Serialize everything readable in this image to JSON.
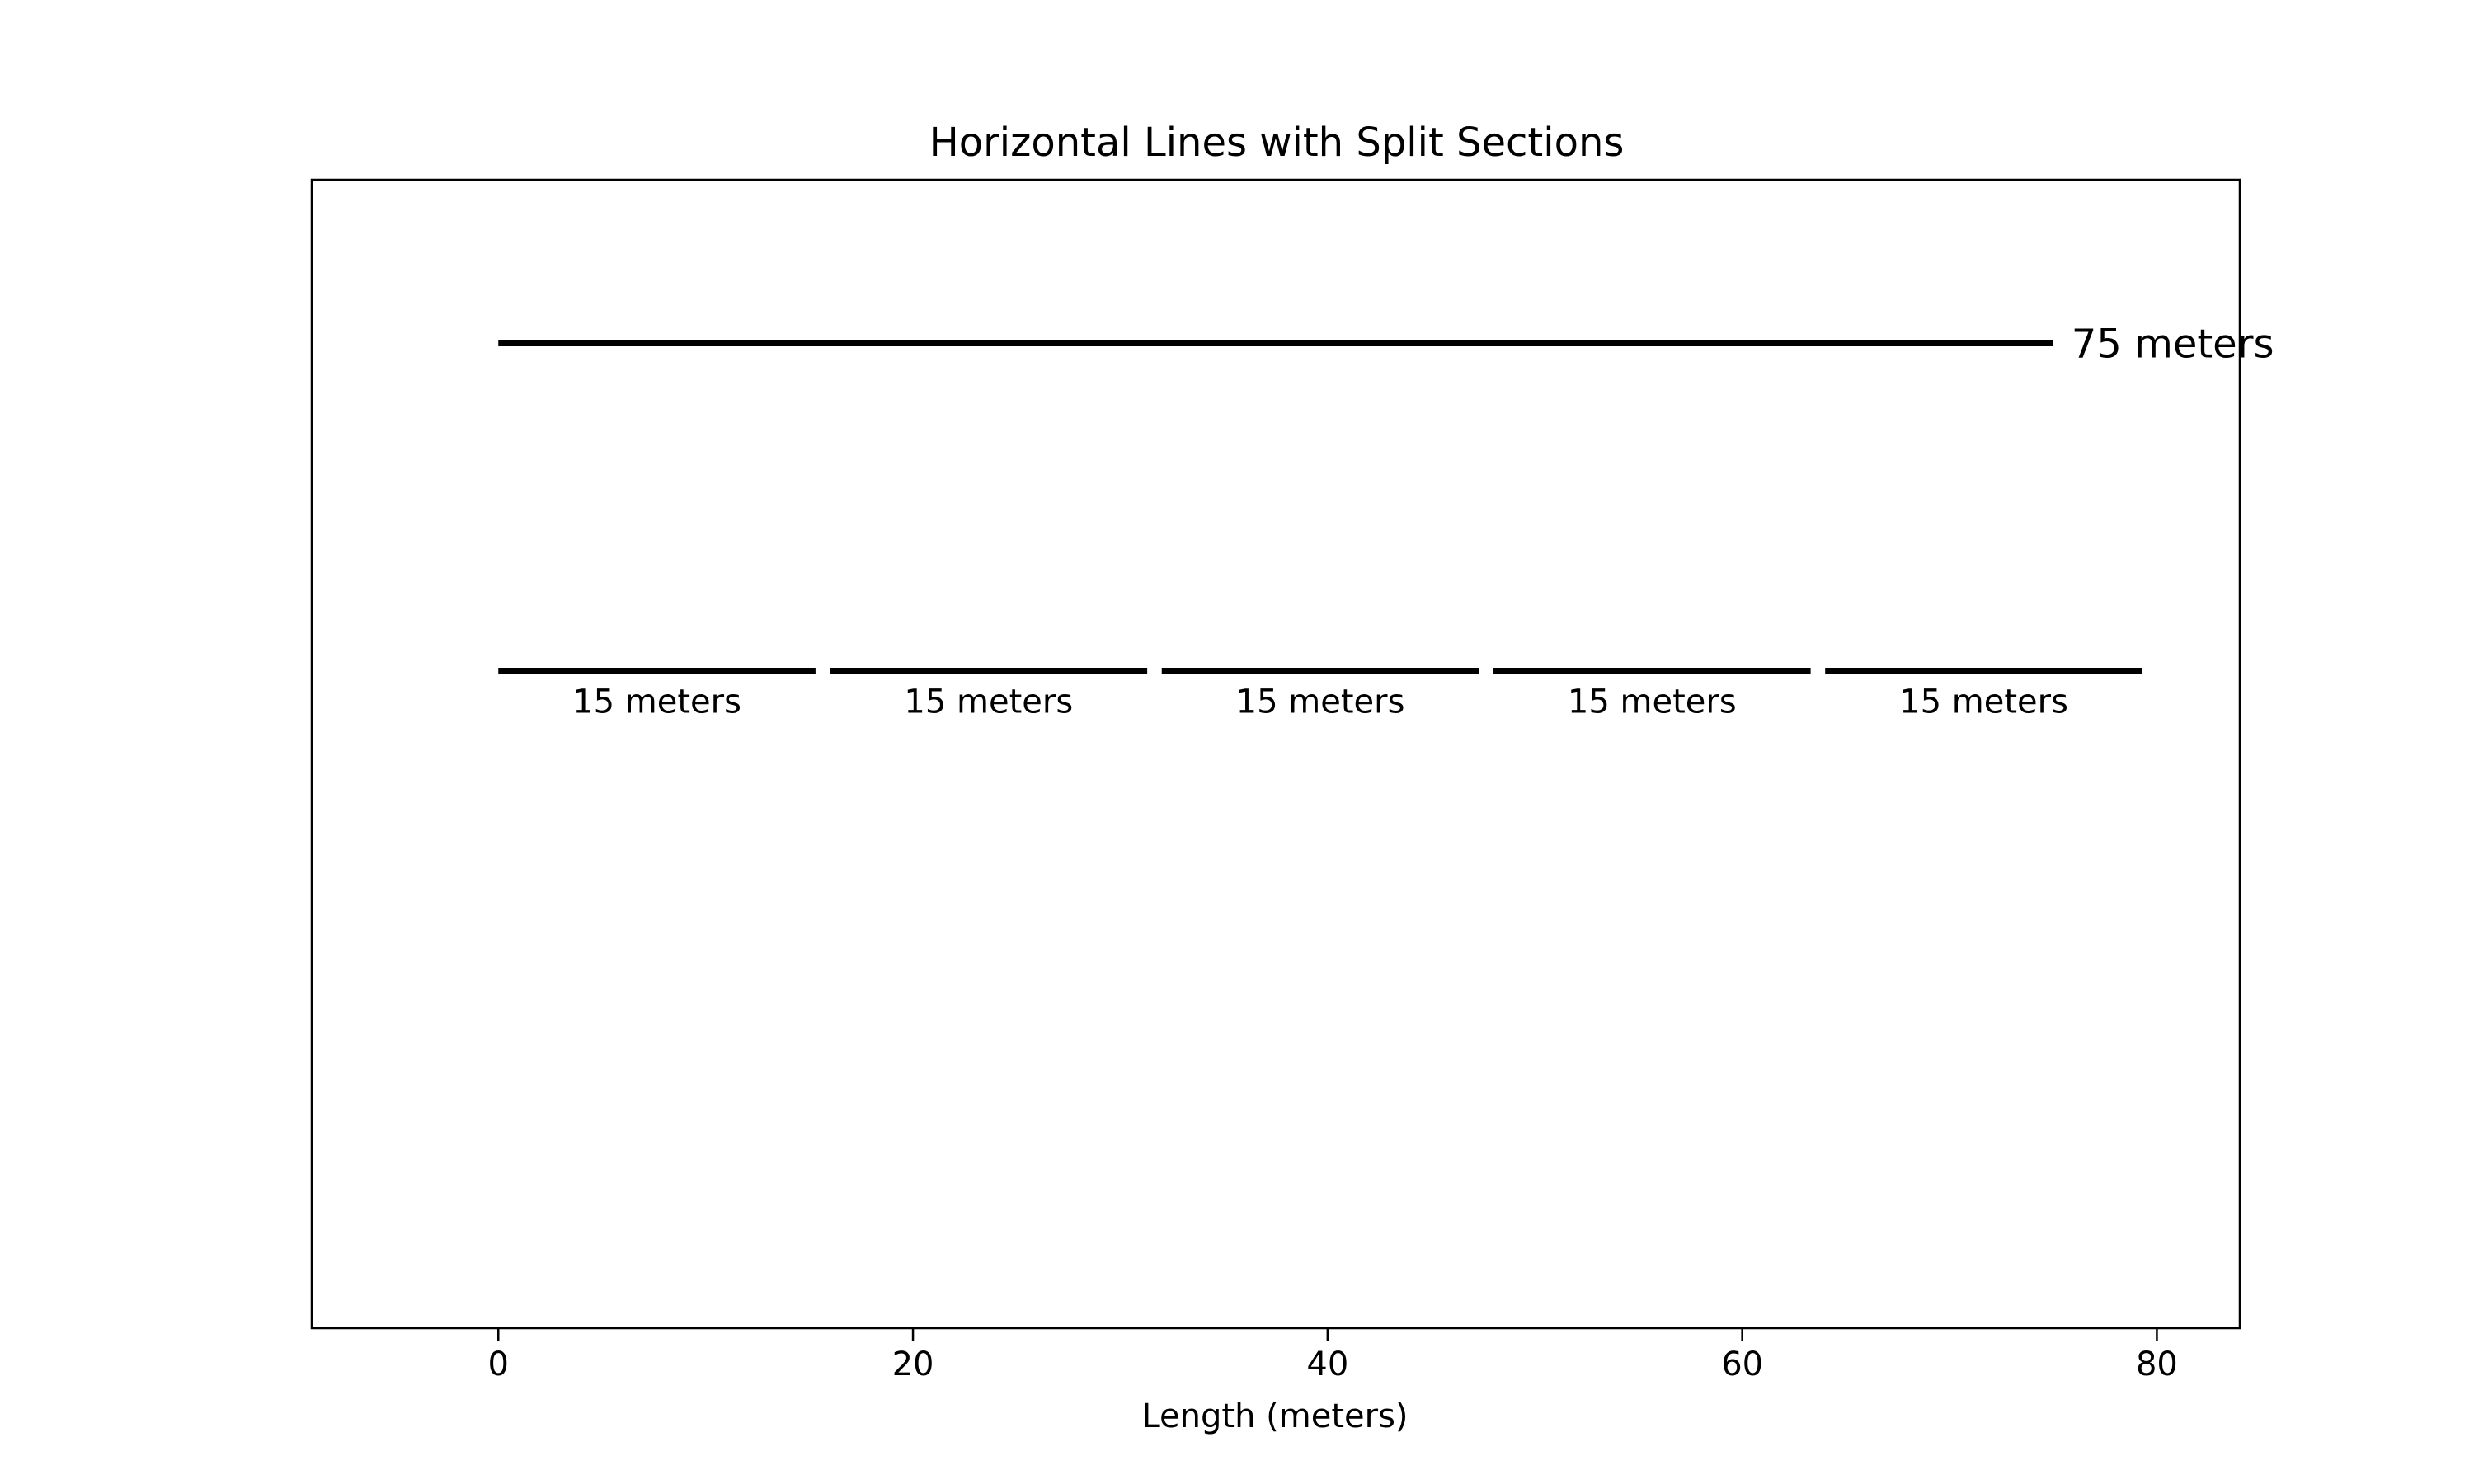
{
  "chart_data": {
    "type": "line",
    "title": "Horizontal Lines with Split Sections",
    "xlabel": "Length (meters)",
    "ylabel": "",
    "xlim": [
      -9,
      84
    ],
    "ylim": [
      0,
      4
    ],
    "x_ticks": [
      {
        "value": 0,
        "label": "0"
      },
      {
        "value": 20,
        "label": "20"
      },
      {
        "value": 40,
        "label": "40"
      },
      {
        "value": 60,
        "label": "60"
      },
      {
        "value": 80,
        "label": "80"
      }
    ],
    "grid": false,
    "legend": "none",
    "line_color": "#000000",
    "full_line": {
      "x_start": 0,
      "x_end": 75,
      "y": 3.43,
      "label": "75 meters"
    },
    "segments": [
      {
        "x_start": 0,
        "x_end": 15.3,
        "y": 2.29,
        "label": "15 meters"
      },
      {
        "x_start": 16.0,
        "x_end": 31.3,
        "y": 2.29,
        "label": "15 meters"
      },
      {
        "x_start": 32.0,
        "x_end": 47.3,
        "y": 2.29,
        "label": "15 meters"
      },
      {
        "x_start": 48.0,
        "x_end": 63.3,
        "y": 2.29,
        "label": "15 meters"
      },
      {
        "x_start": 64.0,
        "x_end": 79.3,
        "y": 2.29,
        "label": "15 meters"
      }
    ]
  }
}
